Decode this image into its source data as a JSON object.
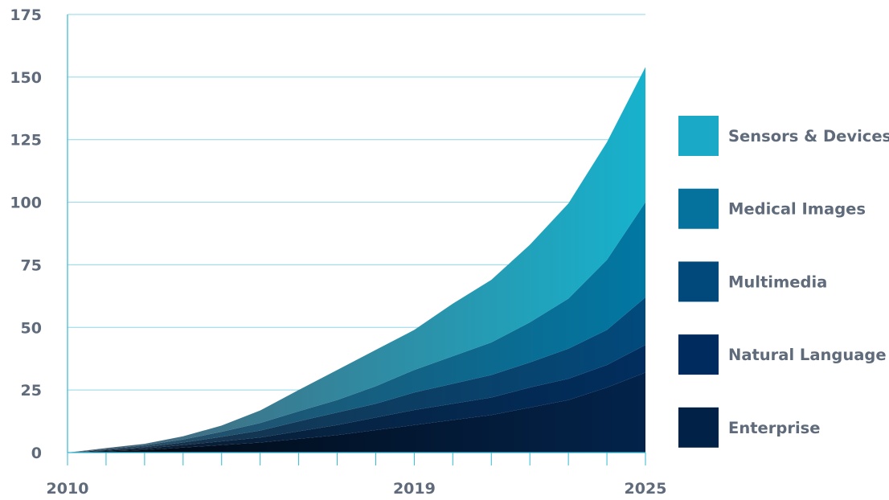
{
  "chart_data": {
    "type": "area",
    "stacked": true,
    "x": [
      2010,
      2011,
      2012,
      2013,
      2014,
      2015,
      2016,
      2017,
      2018,
      2019,
      2020,
      2021,
      2022,
      2023,
      2024,
      2025
    ],
    "x_tick_labels": [
      "2010",
      "2019",
      "2025"
    ],
    "y_tick_labels": [
      "0",
      "25",
      "50",
      "75",
      "100",
      "125",
      "150",
      "175"
    ],
    "ylim": [
      0,
      175
    ],
    "xlim": [
      2010,
      2025
    ],
    "grid": "horizontal",
    "legend_position": "right",
    "series": [
      {
        "name": "Enterprise",
        "color_start": "#02070f",
        "color_end": "#03234a",
        "legend_color": "#022147",
        "values": [
          0,
          0.5,
          1,
          2,
          3,
          4,
          5.5,
          7,
          9,
          11,
          13,
          15,
          18,
          21,
          26,
          32
        ]
      },
      {
        "name": "Natural Language",
        "color_start": "#0b1a2b",
        "color_end": "#012e5e",
        "legend_color": "#002b5e",
        "values": [
          0,
          0.3,
          0.6,
          1,
          1.5,
          2,
          3,
          4,
          5,
          6,
          6.5,
          7,
          8,
          8.5,
          9,
          11
        ]
      },
      {
        "name": "Multimedia",
        "color_start": "#1b2c3f",
        "color_end": "#024a7c",
        "legend_color": "#02497b",
        "values": [
          0,
          0.3,
          0.6,
          1,
          1.8,
          2.8,
          4,
          5,
          5.5,
          7,
          8,
          9,
          10,
          12,
          14,
          19
        ]
      },
      {
        "name": "Medical Images",
        "color_start": "#2c435a",
        "color_end": "#0178a3",
        "legend_color": "#05729e",
        "values": [
          0,
          0.3,
          0.7,
          1.2,
          2,
          3,
          4,
          5,
          7,
          9,
          11,
          13,
          16,
          20,
          28,
          38
        ]
      },
      {
        "name": "Sensors & Devices",
        "color_start": "#4b5f72",
        "color_end": "#17b2cd",
        "legend_color": "#1aa9c6",
        "values": [
          0,
          0.4,
          0.6,
          1.3,
          2.5,
          5,
          8.5,
          12,
          14.5,
          16,
          21,
          25,
          31,
          38,
          47,
          54
        ]
      }
    ]
  },
  "colors": {
    "grid": "#8fd6e8",
    "axis": "#30b9d6",
    "tick_text": "#5f6b7a"
  }
}
